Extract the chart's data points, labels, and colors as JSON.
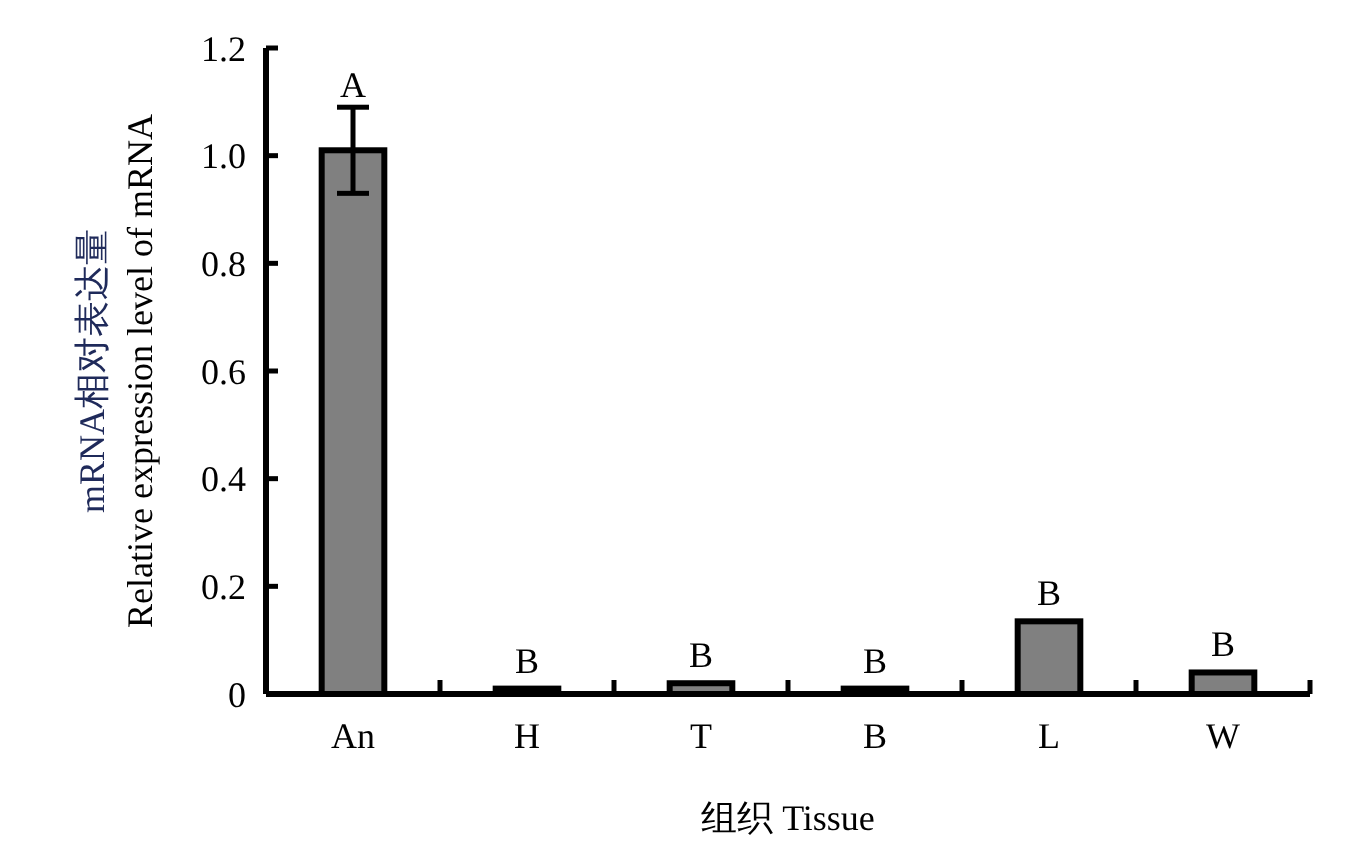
{
  "chart_data": {
    "type": "bar",
    "xlabel": "组织 Tissue",
    "ylabel": "mRNA相对表达量\nRelative expression level of mRNA",
    "categories": [
      "An",
      "H",
      "T",
      "B",
      "L",
      "W"
    ],
    "values": [
      1.01,
      0.01,
      0.02,
      0.01,
      0.135,
      0.04
    ],
    "errors": [
      0.08,
      null,
      null,
      null,
      null,
      null
    ],
    "color": "#808080",
    "ylim": [
      0,
      1.2
    ],
    "yticks": [
      {
        "value": 0,
        "label": "0"
      },
      0.2,
      0.4,
      0.6,
      0.8,
      {
        "value": 1,
        "label": "1.0"
      },
      1.2
    ],
    "annotations": [
      {
        "text": "A",
        "x": "An",
        "y": 1.08
      },
      {
        "text": "B",
        "x": "H",
        "y": 0.01
      },
      {
        "text": "B",
        "x": "T",
        "y": 0.02
      },
      {
        "text": "B",
        "x": "B",
        "y": 0.01
      },
      {
        "text": "B",
        "x": "L",
        "y": 0.135
      },
      {
        "text": "B",
        "x": "W",
        "y": 0.04
      }
    ]
  }
}
